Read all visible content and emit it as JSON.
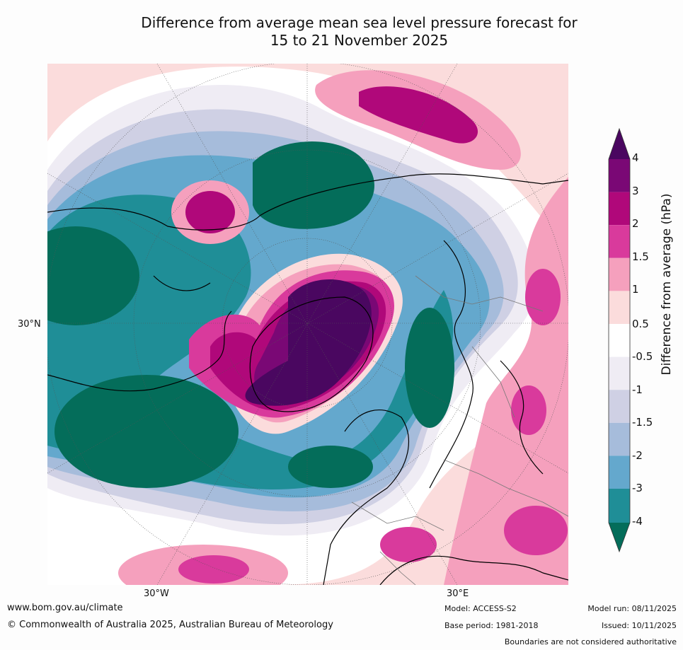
{
  "title_line1": "Difference from average mean sea level pressure forecast for",
  "title_line2": "15 to 21 November 2025",
  "map": {
    "projection": "north-polar-stereographic",
    "lon_labels": [
      "30°W",
      "30°E"
    ],
    "lat_labels": [
      "30°N"
    ]
  },
  "colorbar": {
    "title": "Difference from average (hPa)",
    "ticks": [
      "4",
      "3",
      "2",
      "1.5",
      "1",
      "0.5",
      "-0.5",
      "-1",
      "-1.5",
      "-2",
      "-3",
      "-4"
    ],
    "colors": {
      "over": "#4a0760",
      "p3_4": "#7a0875",
      "p2_3": "#b0087a",
      "p1_5_2": "#d93a9c",
      "p1_1_5": "#f5a0bd",
      "p0_5_1": "#fbdcdc",
      "neutral": "#ffffff",
      "m0_5_1": "#efecf4",
      "m1_1_5": "#cfd0e4",
      "m1_5_2": "#a6bcdb",
      "m2_3": "#64a8cd",
      "m3_4": "#1f8e97",
      "under": "#046d5a"
    }
  },
  "footer": {
    "website": "www.bom.gov.au/climate",
    "copyright": "© Commonwealth of Australia 2025, Australian Bureau of Meteorology",
    "model": "Model: ACCESS-S2",
    "base_period": "Base period: 1981-2018",
    "model_run": "Model run: 08/11/2025",
    "issued": "Issued: 10/11/2025",
    "disclaimer": "Boundaries are not considered authoritative"
  }
}
